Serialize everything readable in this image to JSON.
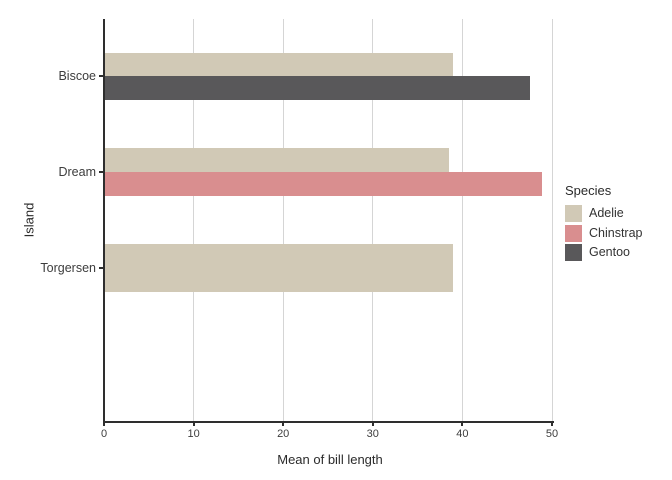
{
  "figure": {
    "background": "#ffffff"
  },
  "chart_data": {
    "type": "bar",
    "orientation": "horizontal",
    "title": "",
    "xlabel": "Mean of bill length",
    "ylabel": "Island",
    "categories": [
      "Biscoe",
      "Dream",
      "Torgersen"
    ],
    "series": [
      {
        "name": "Adelie",
        "color": "#d1c9b6",
        "values": [
          38.98,
          38.5,
          38.95
        ]
      },
      {
        "name": "Chinstrap",
        "color": "#d98e8f",
        "values": [
          null,
          48.83,
          null
        ]
      },
      {
        "name": "Gentoo",
        "color": "#59585a",
        "values": [
          47.5,
          null,
          null
        ]
      }
    ],
    "xlim": [
      0,
      50
    ],
    "x_ticks": [
      0,
      10,
      20,
      30,
      40,
      50
    ],
    "grid": "vertical-only",
    "gridline_color": "#d5d5d5",
    "axis_line_color": "#2e2e2e",
    "bar_group_fraction": 0.5,
    "category_expand": 0.6,
    "legend": {
      "title": "Species",
      "position": "right",
      "entries": [
        {
          "label": "Adelie",
          "color": "#d1c9b6"
        },
        {
          "label": "Chinstrap",
          "color": "#d98e8f"
        },
        {
          "label": "Gentoo",
          "color": "#59585a"
        }
      ]
    }
  }
}
